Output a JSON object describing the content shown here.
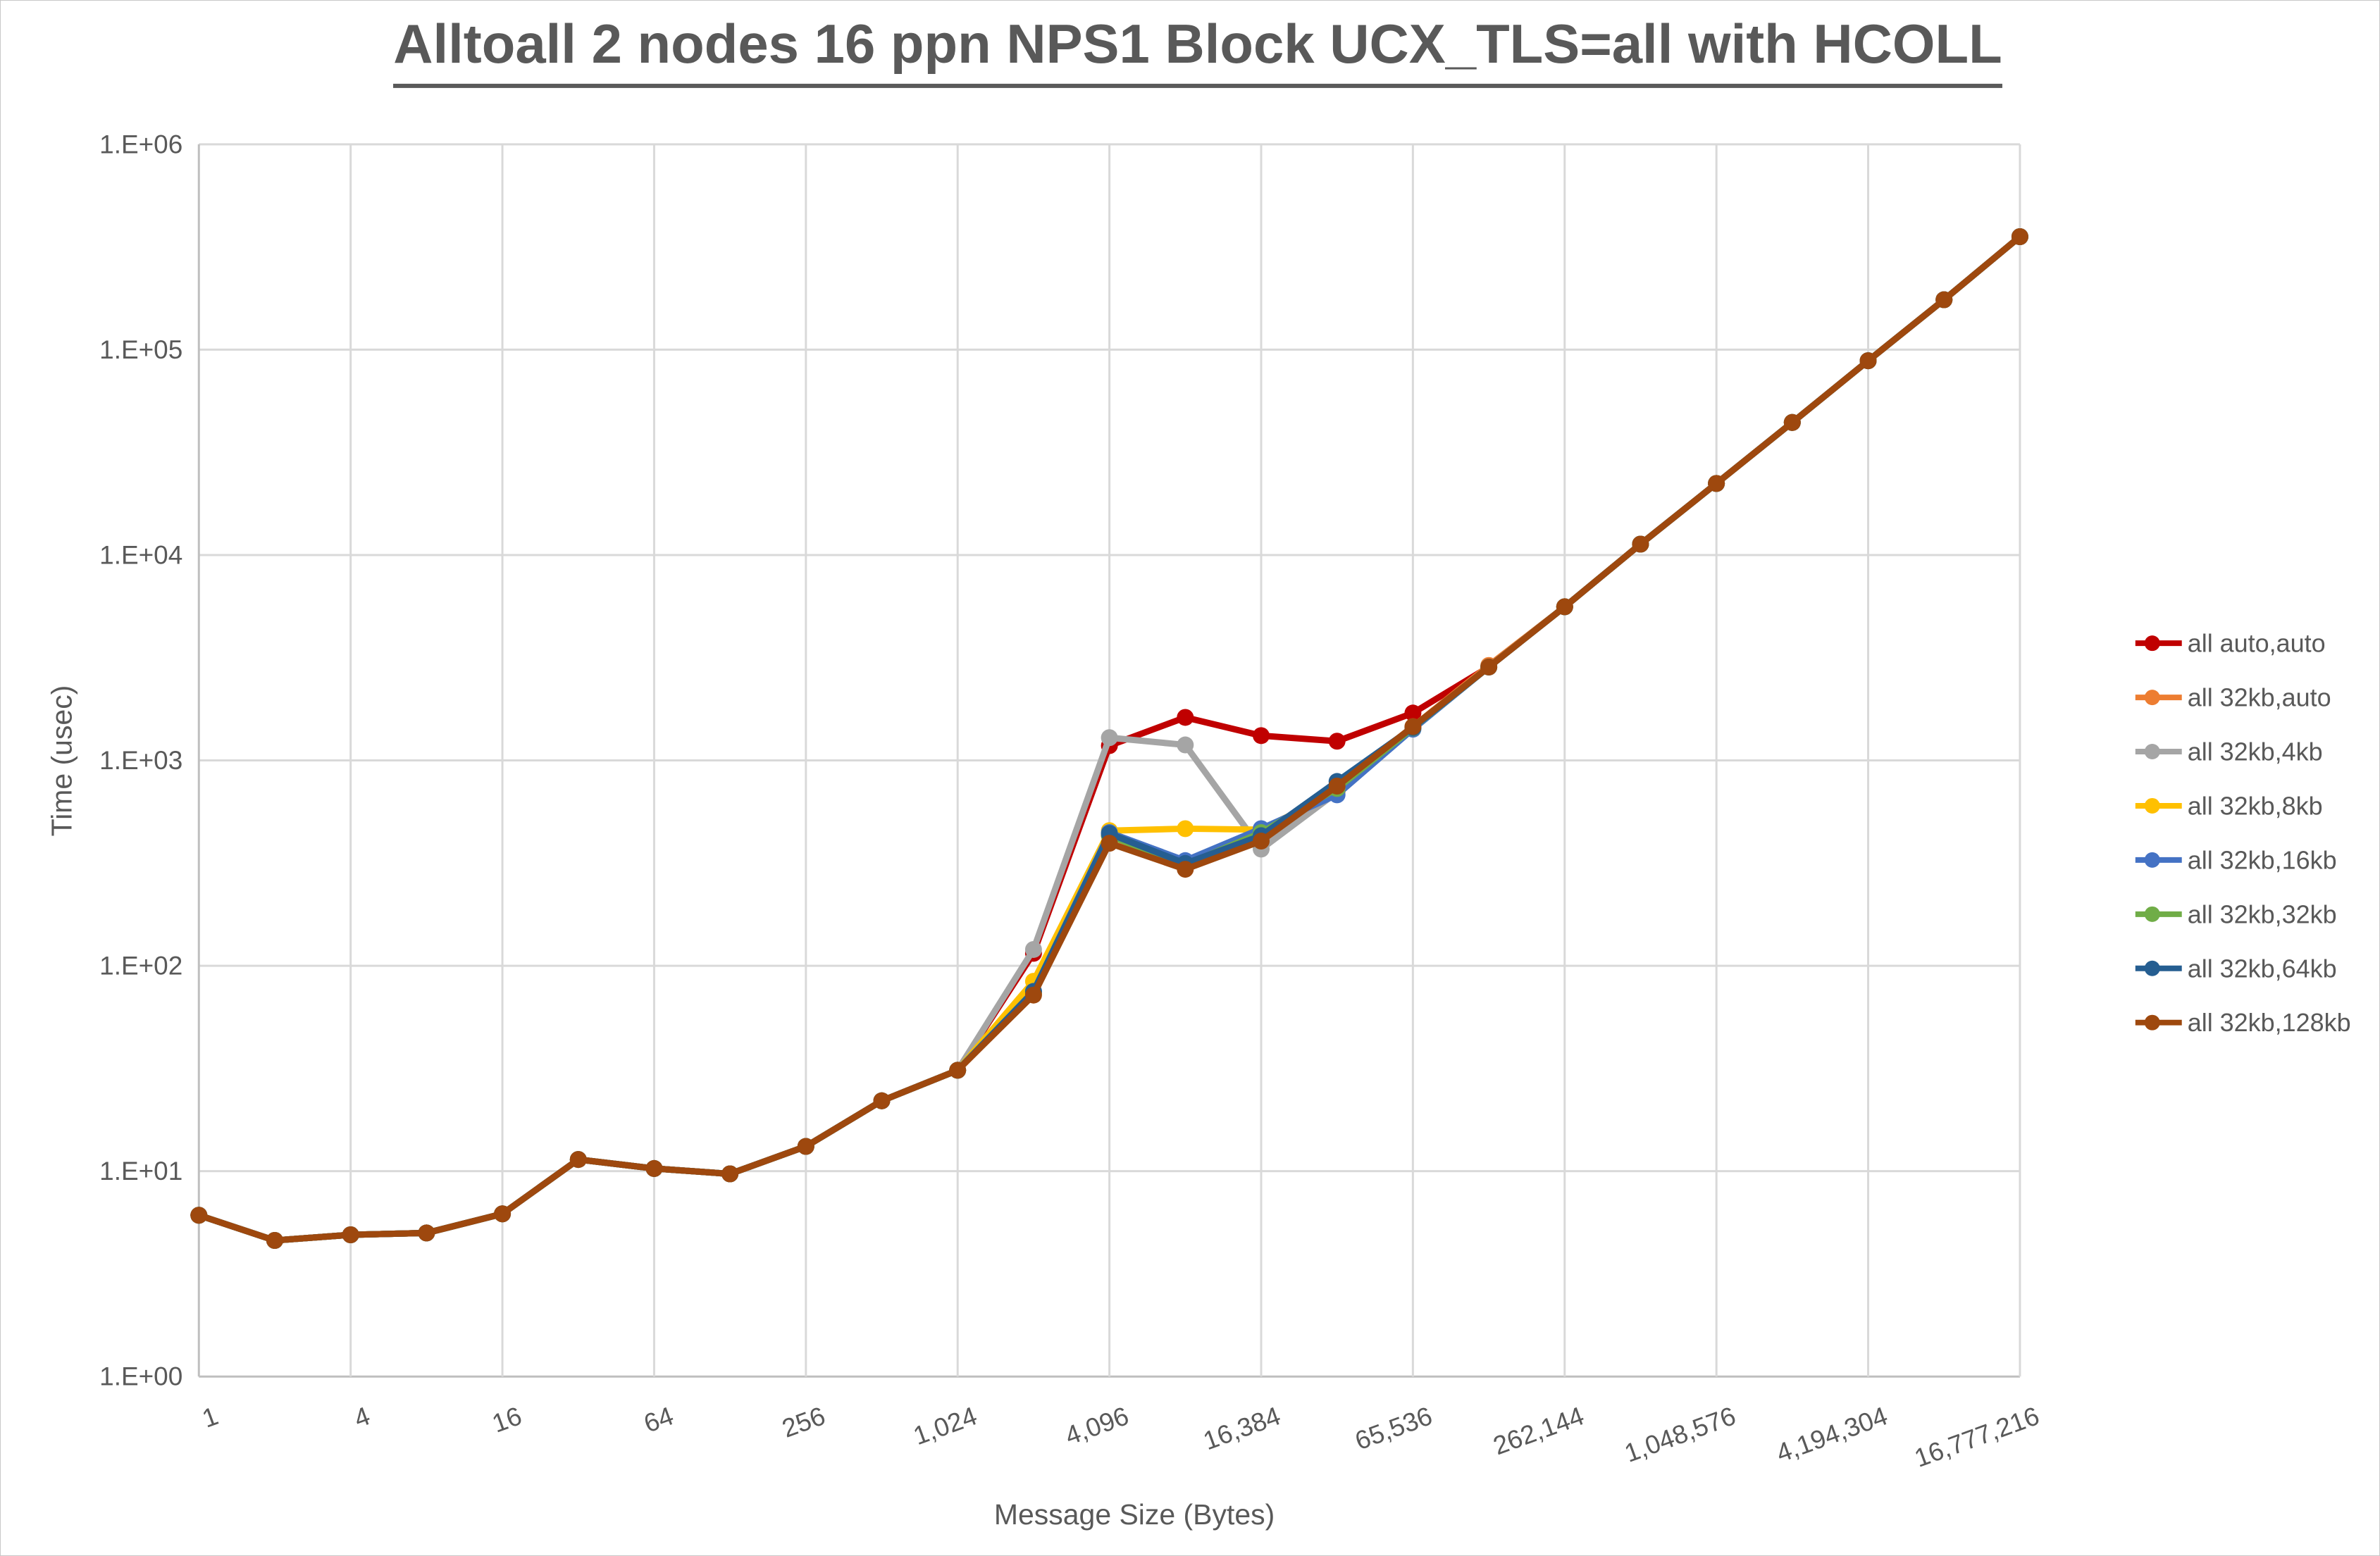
{
  "title": "Alltoall 2 nodes 16 ppn NPS1 Block UCX_TLS=all with HCOLL",
  "colors": {
    "grid": "#D9D9D9",
    "axis_line": "#BFBFBF",
    "text": "#595959",
    "title_underline": "#595959"
  },
  "chart_data": {
    "type": "line",
    "title": "Alltoall 2 nodes 16 ppn NPS1 Block UCX_TLS=all with HCOLL",
    "xlabel": "Message Size (Bytes)",
    "ylabel": "Time (usec)",
    "x_scale": "log2",
    "y_scale": "log10",
    "ylim": [
      1,
      1000000
    ],
    "grid": true,
    "legend_position": "right",
    "y_tick_labels": [
      "1.E+00",
      "1.E+01",
      "1.E+02",
      "1.E+03",
      "1.E+04",
      "1.E+05",
      "1.E+06"
    ],
    "x_tick_labels": [
      "1",
      "4",
      "16",
      "64",
      "256",
      "1,024",
      "4,096",
      "16,384",
      "65,536",
      "262,144",
      "1,048,576",
      "4,194,304",
      "16,777,216"
    ],
    "x": [
      1,
      2,
      4,
      8,
      16,
      32,
      64,
      128,
      256,
      512,
      1024,
      2048,
      4096,
      8192,
      16384,
      32768,
      65536,
      131072,
      262144,
      524288,
      1048576,
      2097152,
      4194304,
      8388608,
      16777216
    ],
    "series": [
      {
        "name": "all auto,auto",
        "color": "#C00000",
        "values": [
          6.1,
          4.6,
          4.9,
          5.0,
          6.2,
          11.4,
          10.3,
          9.7,
          13.2,
          22,
          31,
          115,
          1180,
          1620,
          1320,
          1240,
          1700,
          2850,
          5600,
          11300,
          22300,
          44200,
          88300,
          175000,
          355000
        ]
      },
      {
        "name": "all 32kb,auto",
        "color": "#ED7D31",
        "values": [
          6.1,
          4.6,
          4.9,
          5.0,
          6.2,
          11.4,
          10.3,
          9.7,
          13.2,
          22,
          31,
          73,
          430,
          300,
          410,
          750,
          1460,
          2900,
          5600,
          11300,
          22300,
          44200,
          88300,
          175000,
          355000
        ]
      },
      {
        "name": "all 32kb,4kb",
        "color": "#A5A5A5",
        "values": [
          6.1,
          4.6,
          4.9,
          5.0,
          6.2,
          11.4,
          10.3,
          9.7,
          13.2,
          22,
          31,
          120,
          1290,
          1190,
          370,
          700,
          1450,
          2850,
          5600,
          11300,
          22300,
          44200,
          88300,
          175000,
          355000
        ]
      },
      {
        "name": "all 32kb,8kb",
        "color": "#FFC000",
        "values": [
          6.1,
          4.6,
          4.9,
          5.0,
          6.2,
          11.4,
          10.3,
          9.7,
          13.2,
          22,
          31,
          84,
          455,
          465,
          460,
          700,
          1440,
          2850,
          5600,
          11300,
          22300,
          44200,
          88300,
          175000,
          355000
        ]
      },
      {
        "name": "all 32kb,16kb",
        "color": "#4472C4",
        "values": [
          6.1,
          4.6,
          4.9,
          5.0,
          6.2,
          11.4,
          10.3,
          9.7,
          13.2,
          22,
          31,
          75,
          445,
          325,
          465,
          680,
          1420,
          2850,
          5600,
          11300,
          22300,
          44200,
          88300,
          175000,
          355000
        ]
      },
      {
        "name": "all 32kb,32kb",
        "color": "#70AD47",
        "values": [
          6.1,
          4.6,
          4.9,
          5.0,
          6.2,
          11.4,
          10.3,
          9.7,
          13.2,
          22,
          31,
          74,
          430,
          310,
          445,
          730,
          1440,
          2850,
          5600,
          11300,
          22300,
          44200,
          88300,
          175000,
          355000
        ]
      },
      {
        "name": "all 32kb,64kb",
        "color": "#255E91",
        "values": [
          6.1,
          4.6,
          4.9,
          5.0,
          6.2,
          11.4,
          10.3,
          9.7,
          13.2,
          22,
          31,
          75,
          440,
          315,
          430,
          790,
          1445,
          2850,
          5600,
          11300,
          22300,
          44200,
          88300,
          175000,
          355000
        ]
      },
      {
        "name": "all 32kb,128kb",
        "color": "#9E480E",
        "values": [
          6.1,
          4.6,
          4.9,
          5.0,
          6.2,
          11.4,
          10.3,
          9.7,
          13.2,
          22,
          31,
          72,
          395,
          295,
          405,
          750,
          1460,
          2850,
          5600,
          11300,
          22300,
          44200,
          88300,
          175000,
          355000
        ]
      }
    ]
  }
}
